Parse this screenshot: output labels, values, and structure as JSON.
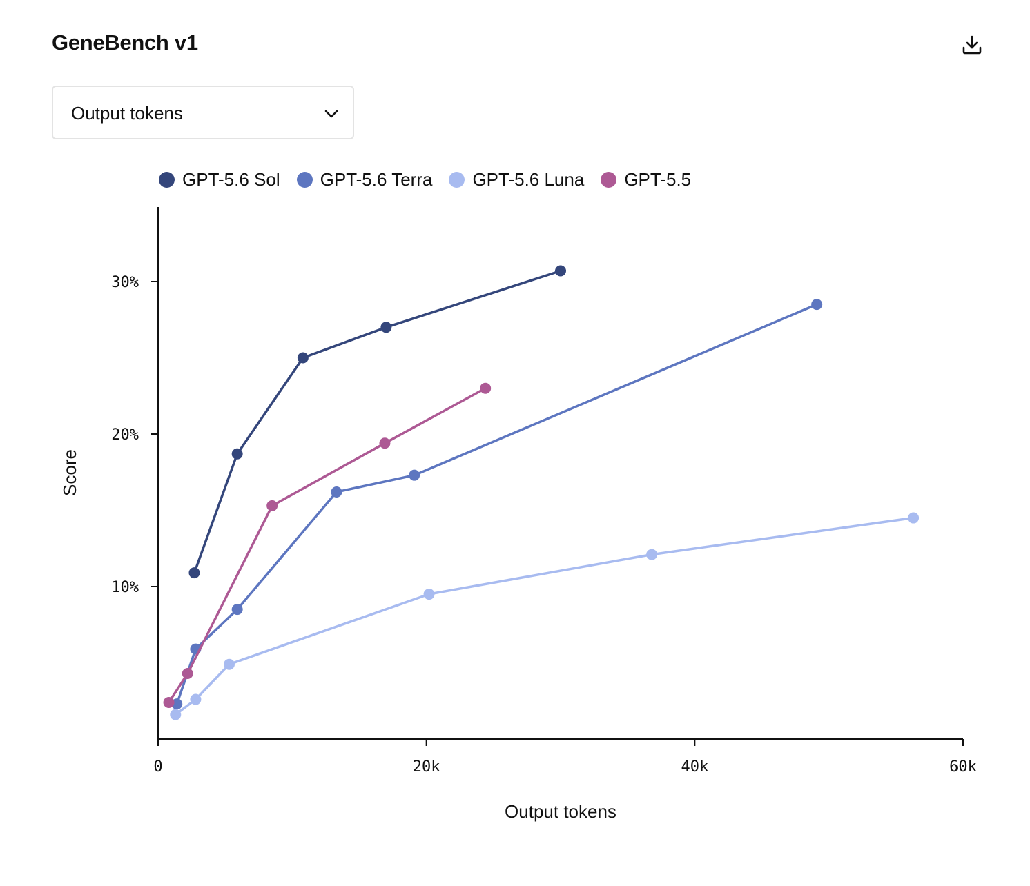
{
  "header": {
    "title": "GeneBench v1",
    "download_icon": "download-icon"
  },
  "metric_select": {
    "selected": "Output tokens",
    "chevron_icon": "chevron-down-icon"
  },
  "chart_data": {
    "type": "line",
    "xlabel": "Output tokens",
    "ylabel": "Score",
    "xlim": [
      0,
      60000
    ],
    "ylim": [
      0,
      35
    ],
    "x_ticks": [
      {
        "value": 0,
        "label": "0"
      },
      {
        "value": 20000,
        "label": "20k"
      },
      {
        "value": 40000,
        "label": "40k"
      },
      {
        "value": 60000,
        "label": "60k"
      }
    ],
    "y_ticks": [
      {
        "value": 10,
        "label": "10%"
      },
      {
        "value": 20,
        "label": "20%"
      },
      {
        "value": 30,
        "label": "30%"
      }
    ],
    "grid": false,
    "legend_position": "top-left",
    "series": [
      {
        "name": "GPT-5.6 Sol",
        "color": "#34467b",
        "points": [
          [
            2700,
            10.9
          ],
          [
            5900,
            18.7
          ],
          [
            10800,
            25.0
          ],
          [
            17000,
            27.0
          ],
          [
            30000,
            30.7
          ]
        ]
      },
      {
        "name": "GPT-5.6 Terra",
        "color": "#5d76c0",
        "points": [
          [
            1400,
            2.3
          ],
          [
            2800,
            5.9
          ],
          [
            5900,
            8.5
          ],
          [
            13300,
            16.2
          ],
          [
            19100,
            17.3
          ],
          [
            49100,
            28.5
          ]
        ]
      },
      {
        "name": "GPT-5.6 Luna",
        "color": "#a8bbf0",
        "points": [
          [
            1300,
            1.6
          ],
          [
            2800,
            2.6
          ],
          [
            5300,
            4.9
          ],
          [
            20200,
            9.5
          ],
          [
            36800,
            12.1
          ],
          [
            56300,
            14.5
          ]
        ]
      },
      {
        "name": "GPT-5.5",
        "color": "#ad5994",
        "points": [
          [
            800,
            2.4
          ],
          [
            2200,
            4.3
          ],
          [
            8500,
            15.3
          ],
          [
            16900,
            19.4
          ],
          [
            24400,
            23.0
          ]
        ]
      }
    ]
  }
}
